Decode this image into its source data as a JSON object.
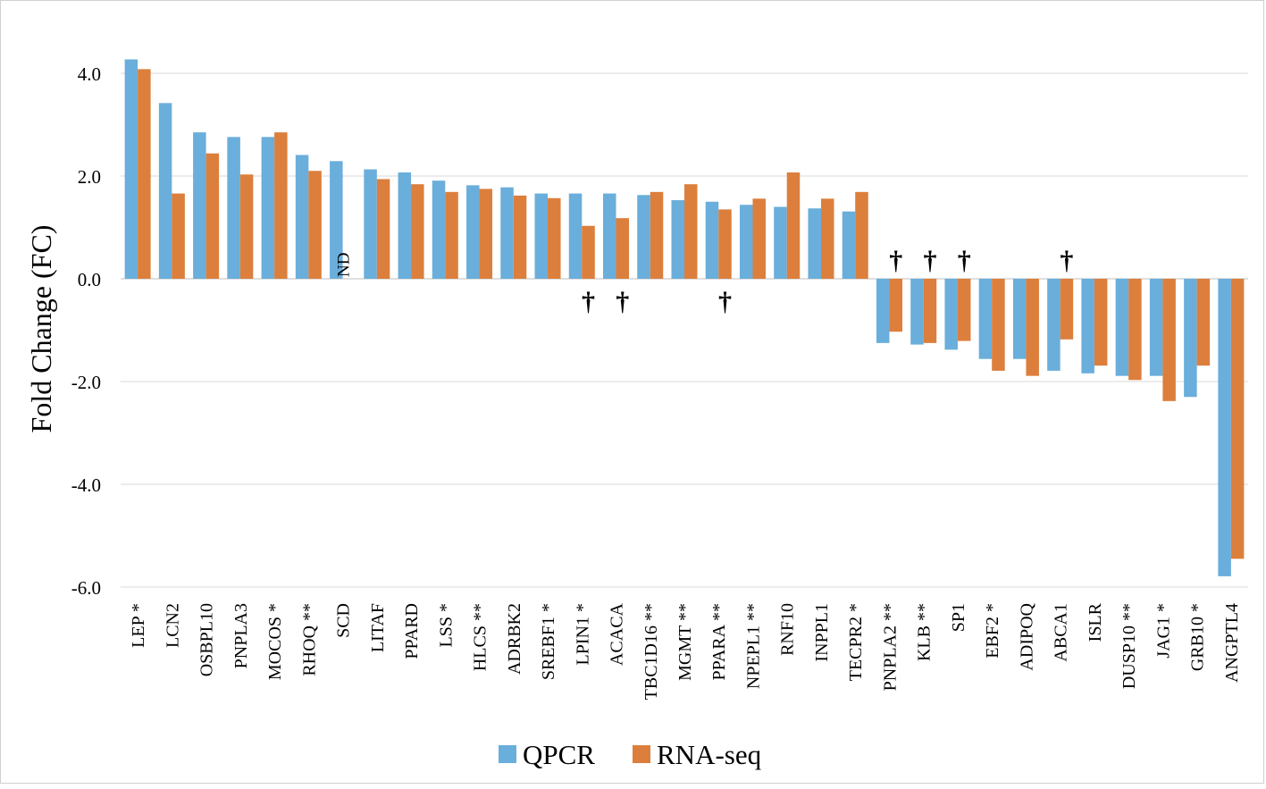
{
  "chart_data": {
    "type": "bar",
    "title": "",
    "xlabel": "",
    "ylabel": "Fold Change (FC)",
    "ylim": [
      -6,
      4.4
    ],
    "yticks": [
      4,
      2,
      0,
      -2,
      -4,
      -6
    ],
    "ytick_labels": [
      "4.0",
      "2.0",
      "0.0",
      "-2.0",
      "-4.0",
      "-6.0"
    ],
    "grid": true,
    "legend_position": "bottom-center",
    "categories": [
      "LEP *",
      "LCN2",
      "OSBPL10",
      "PNPLA3",
      "MOCOS *",
      "RHOQ **",
      "SCD",
      "LITAF",
      "PPARD",
      "LSS *",
      "HLCS **",
      "ADRBK2",
      "SREBF1 *",
      "LPIN1 *",
      "ACACA",
      "TBC1D16 **",
      "MGMT **",
      "PPARA **",
      "NPEPL1 **",
      "RNF10",
      "INPPL1",
      "TECPR2 *",
      "PNPLA2 **",
      "KLB **",
      "SP1",
      "EBF2 *",
      "ADIPOQ",
      "ABCA1",
      "ISLR",
      "DUSP10 **",
      "JAG1 *",
      "GRB10 *",
      "ANGPTL4"
    ],
    "series": [
      {
        "name": "QPCR",
        "color": "#6aaedb",
        "values": [
          4.27,
          3.42,
          2.85,
          2.76,
          2.76,
          2.41,
          2.29,
          2.13,
          2.07,
          1.91,
          1.82,
          1.78,
          1.66,
          1.66,
          1.66,
          1.63,
          1.53,
          1.5,
          1.44,
          1.4,
          1.37,
          1.31,
          -1.25,
          -1.28,
          -1.38,
          -1.56,
          -1.56,
          -1.79,
          -1.84,
          -1.89,
          -1.89,
          -2.3,
          -5.79
        ]
      },
      {
        "name": "RNA-seq",
        "color": "#dc7f3c",
        "values": [
          4.08,
          1.66,
          2.44,
          2.03,
          2.85,
          2.1,
          null,
          1.94,
          1.84,
          1.69,
          1.75,
          1.62,
          1.57,
          1.03,
          1.18,
          1.69,
          1.84,
          1.35,
          1.56,
          2.07,
          1.56,
          1.69,
          -1.03,
          -1.25,
          -1.21,
          -1.79,
          -1.89,
          -1.18,
          -1.69,
          -1.97,
          -2.38,
          -1.69,
          -5.45
        ]
      }
    ],
    "annotations": [
      {
        "category": "SCD",
        "text": "ND"
      },
      {
        "category": "LPIN1 *",
        "text": "†"
      },
      {
        "category": "ACACA",
        "text": "†"
      },
      {
        "category": "PPARA **",
        "text": "†"
      },
      {
        "category": "PNPLA2 **",
        "text": "†"
      },
      {
        "category": "KLB **",
        "text": "†"
      },
      {
        "category": "SP1",
        "text": "†"
      },
      {
        "category": "ABCA1",
        "text": "†"
      }
    ]
  }
}
